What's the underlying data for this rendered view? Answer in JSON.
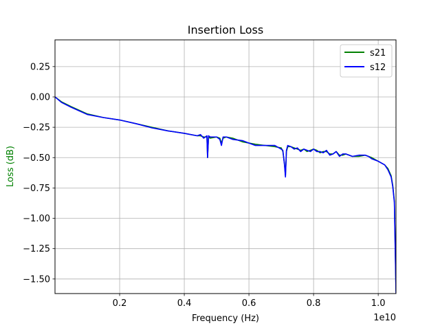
{
  "chart_data": {
    "type": "line",
    "title": "Insertion Loss",
    "xlabel": "Frequency (Hz)",
    "ylabel": "Loss (dB)",
    "x_offset_label": "1e10",
    "x_scale": 10000000000,
    "xlim": [
      0.0,
      1.055
    ],
    "ylim": [
      -1.62,
      0.47
    ],
    "x_ticks": [
      0.2,
      0.4,
      0.6,
      0.8,
      1.0
    ],
    "x_tick_labels": [
      "0.2",
      "0.4",
      "0.6",
      "0.8",
      "1.0"
    ],
    "y_ticks": [
      0.25,
      0.0,
      -0.25,
      -0.5,
      -0.75,
      -1.0,
      -1.25,
      -1.5
    ],
    "y_tick_labels": [
      "0.25",
      "0.00",
      "−0.25",
      "−0.50",
      "−0.75",
      "−1.00",
      "−1.25",
      "−1.50"
    ],
    "grid": true,
    "legend_position": "top-right",
    "ylabel_color": "#008000",
    "series": [
      {
        "name": "s21",
        "color": "#008000",
        "x": [
          0.0,
          0.02,
          0.05,
          0.1,
          0.15,
          0.2,
          0.25,
          0.3,
          0.35,
          0.4,
          0.44,
          0.45,
          0.46,
          0.47,
          0.472,
          0.475,
          0.48,
          0.5,
          0.51,
          0.515,
          0.52,
          0.53,
          0.55,
          0.58,
          0.6,
          0.62,
          0.65,
          0.68,
          0.7,
          0.705,
          0.71,
          0.713,
          0.716,
          0.72,
          0.73,
          0.74,
          0.75,
          0.76,
          0.77,
          0.78,
          0.79,
          0.8,
          0.81,
          0.82,
          0.83,
          0.84,
          0.85,
          0.86,
          0.87,
          0.88,
          0.89,
          0.9,
          0.92,
          0.94,
          0.96,
          0.97,
          0.98,
          1.0,
          1.02,
          1.03,
          1.04,
          1.045,
          1.05,
          1.055
        ],
        "values": [
          0.0,
          -0.04,
          -0.08,
          -0.14,
          -0.17,
          -0.19,
          -0.22,
          -0.25,
          -0.28,
          -0.3,
          -0.32,
          -0.32,
          -0.33,
          -0.33,
          -0.5,
          -0.33,
          -0.34,
          -0.33,
          -0.34,
          -0.38,
          -0.34,
          -0.33,
          -0.34,
          -0.37,
          -0.38,
          -0.39,
          -0.4,
          -0.41,
          -0.42,
          -0.45,
          -0.55,
          -0.65,
          -0.45,
          -0.41,
          -0.41,
          -0.42,
          -0.43,
          -0.44,
          -0.43,
          -0.45,
          -0.44,
          -0.43,
          -0.44,
          -0.46,
          -0.45,
          -0.45,
          -0.47,
          -0.47,
          -0.45,
          -0.48,
          -0.48,
          -0.47,
          -0.49,
          -0.49,
          -0.48,
          -0.49,
          -0.5,
          -0.53,
          -0.56,
          -0.59,
          -0.65,
          -0.73,
          -0.86,
          -1.6
        ]
      },
      {
        "name": "s12",
        "color": "#0000ff",
        "x": [
          0.0,
          0.02,
          0.05,
          0.1,
          0.15,
          0.2,
          0.25,
          0.3,
          0.35,
          0.4,
          0.44,
          0.45,
          0.46,
          0.47,
          0.472,
          0.475,
          0.48,
          0.5,
          0.51,
          0.515,
          0.52,
          0.53,
          0.55,
          0.58,
          0.6,
          0.62,
          0.65,
          0.68,
          0.7,
          0.705,
          0.71,
          0.713,
          0.716,
          0.72,
          0.73,
          0.74,
          0.75,
          0.76,
          0.77,
          0.78,
          0.79,
          0.8,
          0.81,
          0.82,
          0.83,
          0.84,
          0.85,
          0.86,
          0.87,
          0.88,
          0.89,
          0.9,
          0.92,
          0.94,
          0.96,
          0.97,
          0.98,
          1.0,
          1.02,
          1.03,
          1.04,
          1.045,
          1.05,
          1.055
        ],
        "values": [
          0.0,
          -0.045,
          -0.085,
          -0.145,
          -0.17,
          -0.19,
          -0.22,
          -0.255,
          -0.28,
          -0.3,
          -0.32,
          -0.31,
          -0.34,
          -0.32,
          -0.5,
          -0.32,
          -0.33,
          -0.33,
          -0.35,
          -0.4,
          -0.33,
          -0.33,
          -0.35,
          -0.36,
          -0.38,
          -0.4,
          -0.4,
          -0.4,
          -0.43,
          -0.44,
          -0.56,
          -0.66,
          -0.44,
          -0.4,
          -0.41,
          -0.43,
          -0.42,
          -0.45,
          -0.43,
          -0.44,
          -0.45,
          -0.43,
          -0.45,
          -0.45,
          -0.46,
          -0.44,
          -0.48,
          -0.47,
          -0.45,
          -0.49,
          -0.47,
          -0.47,
          -0.49,
          -0.48,
          -0.48,
          -0.49,
          -0.51,
          -0.53,
          -0.56,
          -0.6,
          -0.66,
          -0.74,
          -0.87,
          -1.62
        ]
      }
    ]
  }
}
